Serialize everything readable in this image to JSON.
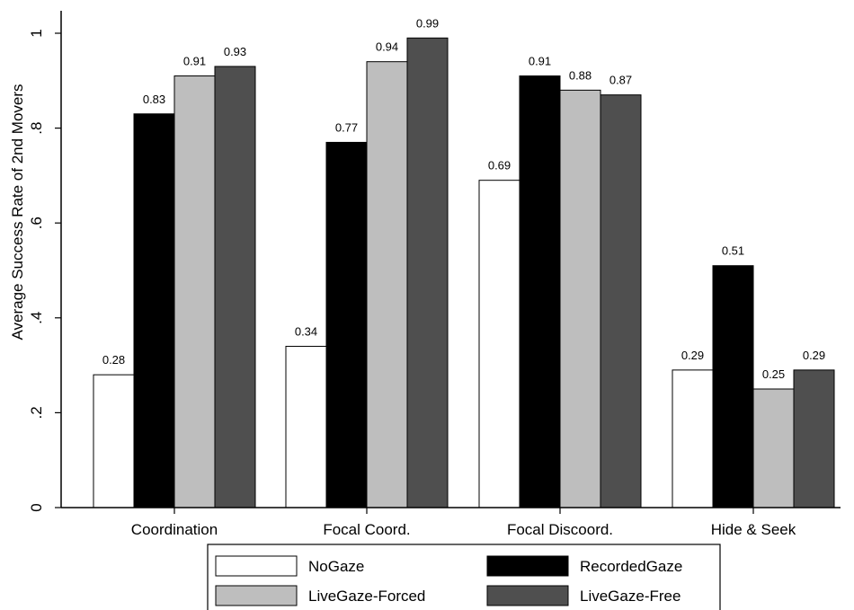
{
  "chart_data": {
    "type": "bar",
    "title": "",
    "xlabel": "",
    "ylabel": "Average Success Rate of 2nd Movers",
    "ylim": [
      0,
      1.05
    ],
    "yticks": [
      0,
      0.2,
      0.4,
      0.6,
      0.8,
      1
    ],
    "ytick_labels": [
      "0",
      ".2",
      ".4",
      ".6",
      ".8",
      "1"
    ],
    "categories": [
      "Coordination",
      "Focal Coord.",
      "Focal Discoord.",
      "Hide & Seek"
    ],
    "series": [
      {
        "name": "NoGaze",
        "color": "#ffffff",
        "values": [
          0.28,
          0.34,
          0.69,
          0.29
        ]
      },
      {
        "name": "RecordedGaze",
        "color": "#000000",
        "values": [
          0.83,
          0.77,
          0.91,
          0.51
        ]
      },
      {
        "name": "LiveGaze-Forced",
        "color": "#bebebe",
        "values": [
          0.91,
          0.94,
          0.88,
          0.25
        ]
      },
      {
        "name": "LiveGaze-Free",
        "color": "#4f4f4f",
        "values": [
          0.93,
          0.99,
          0.87,
          0.29
        ]
      }
    ],
    "value_labels": [
      [
        "0.28",
        "0.34",
        "0.69",
        "0.29"
      ],
      [
        "0.83",
        "0.77",
        "0.91",
        "0.51"
      ],
      [
        "0.91",
        "0.94",
        "0.88",
        "0.25"
      ],
      [
        "0.93",
        "0.99",
        "0.87",
        "0.29"
      ]
    ],
    "legend_position": "bottom",
    "grid": false
  }
}
